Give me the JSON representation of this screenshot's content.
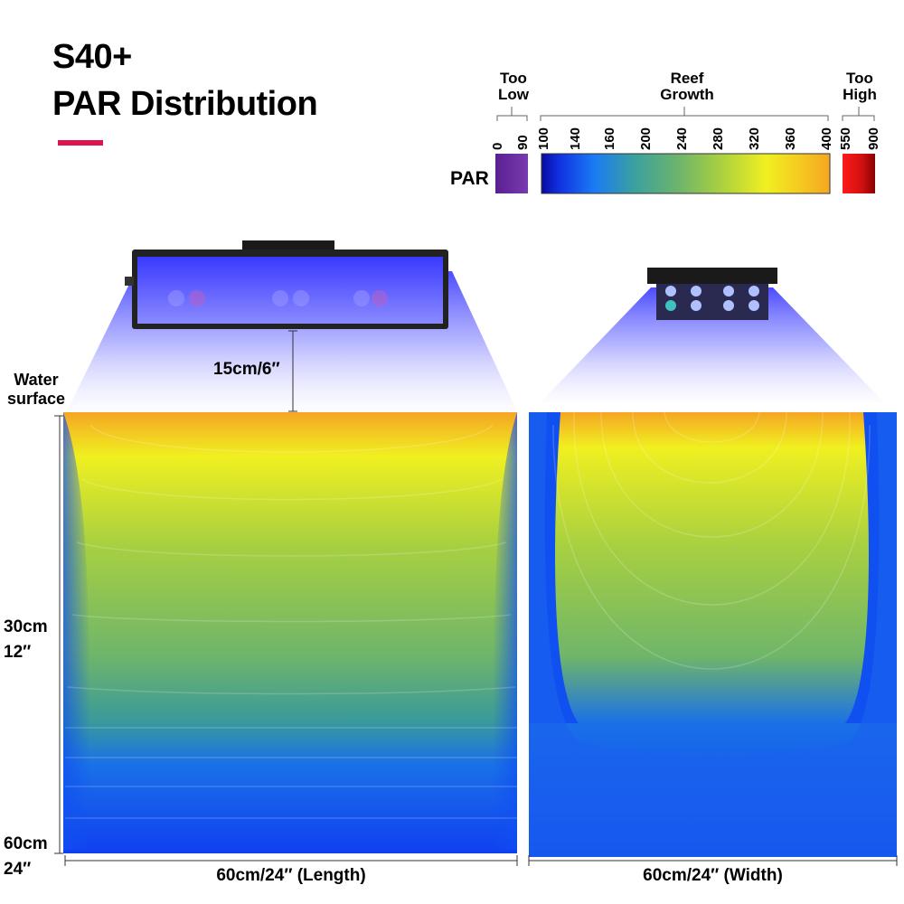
{
  "title": {
    "line1": "S40+",
    "line2": "PAR Distribution"
  },
  "colors": {
    "accent": "#e0134f",
    "too_low": "#6a2aa0",
    "too_high": "#d81010",
    "orange": "#f5a623",
    "yellow": "#f0f020",
    "green": "#6fb56a",
    "blue": "#1050f0",
    "light_glow": "#3030ff"
  },
  "legend": {
    "row_label": "PAR",
    "too_low": {
      "label": "Too\nLow",
      "ticks": [
        "0",
        "90"
      ]
    },
    "reef_growth": {
      "label": "Reef\nGrowth",
      "ticks": [
        "100",
        "140",
        "160",
        "200",
        "240",
        "280",
        "320",
        "360",
        "400"
      ]
    },
    "too_high": {
      "label": "Too\nHigh",
      "ticks": [
        "550",
        "900"
      ]
    }
  },
  "annotations": {
    "mount_height": "15cm/6″",
    "water_surface": "Water\nsurface",
    "depth_mid": "30cm\n12″",
    "depth_bottom": "60cm\n24″"
  },
  "panels": {
    "length": {
      "caption": "60cm/24″  (Length)"
    },
    "width": {
      "caption": "60cm/24″  (Width)"
    }
  }
}
